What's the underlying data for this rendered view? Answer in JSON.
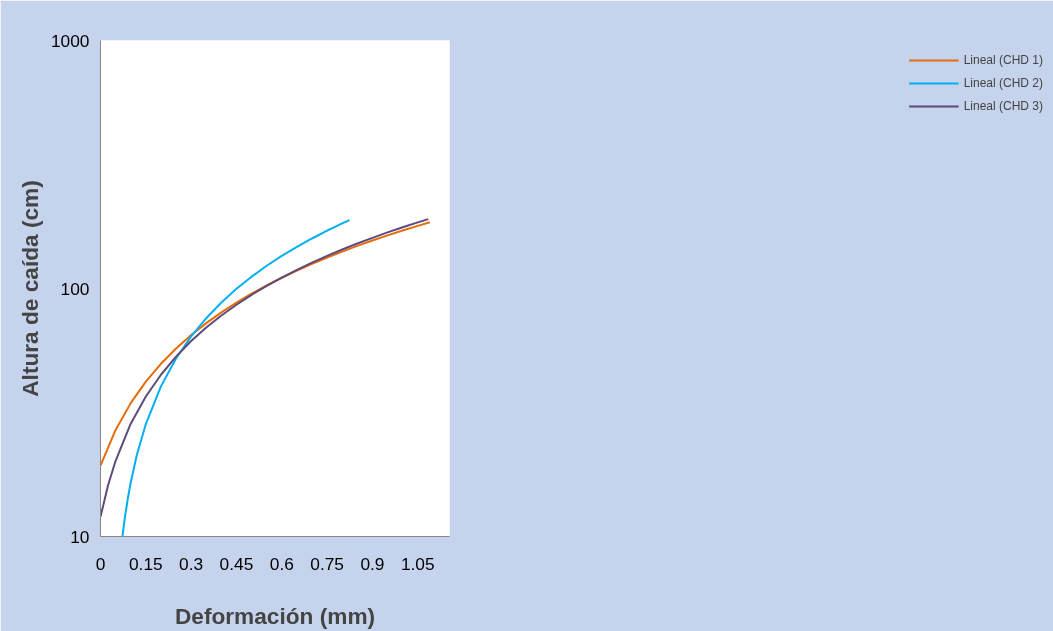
{
  "chart_data": {
    "type": "line",
    "xlabel": "Deformación (mm)",
    "ylabel": "Altura de caída (cm)",
    "log": "y",
    "xlim": [
      0,
      1.155
    ],
    "xticks": [
      0,
      0.15,
      0.3,
      0.45,
      0.6,
      0.75,
      0.9,
      1.05
    ],
    "ylim": [
      10,
      1000
    ],
    "yticks": [
      10,
      100,
      1000
    ],
    "grid": false,
    "legend": "right",
    "marker": "none",
    "line_style": "solid",
    "series": [
      {
        "name": "Lineal (CHD 1)",
        "color": "#e46c0a",
        "x": [
          0,
          0.05,
          0.1,
          0.15,
          0.2,
          0.25,
          0.3,
          0.35,
          0.4,
          0.45,
          0.5,
          0.55,
          0.6,
          0.65,
          0.7,
          0.75,
          0.8,
          0.85,
          0.9,
          0.95,
          1.0,
          1.05,
          1.09
        ],
        "values": [
          19.3,
          26.9,
          34.5,
          42.1,
          49.7,
          57.3,
          64.9,
          72.5,
          80.1,
          87.7,
          95.3,
          102.9,
          110.5,
          118.1,
          125.7,
          133.3,
          140.9,
          148.5,
          156.1,
          163.7,
          171.3,
          178.9,
          185.0
        ]
      },
      {
        "name": "Lineal (CHD 2)",
        "color": "#00b0f0",
        "x": [
          0.0726,
          0.08,
          0.09,
          0.1,
          0.12,
          0.15,
          0.2,
          0.25,
          0.3,
          0.35,
          0.4,
          0.45,
          0.5,
          0.55,
          0.6,
          0.65,
          0.7,
          0.75,
          0.8,
          0.824
        ],
        "values": [
          10.0,
          11.76,
          14.13,
          16.51,
          21.26,
          28.4,
          40.3,
          52.2,
          64.1,
          75.9,
          87.8,
          99.7,
          111.6,
          123.5,
          135.4,
          147.2,
          159.1,
          171.0,
          182.9,
          188.6
        ]
      },
      {
        "name": "Lineal (CHD 3)",
        "color": "#604a7b",
        "x": [
          0,
          0.025,
          0.05,
          0.1,
          0.15,
          0.2,
          0.25,
          0.3,
          0.35,
          0.4,
          0.45,
          0.5,
          0.55,
          0.6,
          0.65,
          0.7,
          0.75,
          0.8,
          0.85,
          0.9,
          0.95,
          1.0,
          1.05,
          1.085
        ],
        "values": [
          12.0,
          16.1,
          20.2,
          28.5,
          36.7,
          44.9,
          53.1,
          61.4,
          69.6,
          77.8,
          86.0,
          94.3,
          102.5,
          110.7,
          118.9,
          127.2,
          135.4,
          143.6,
          151.8,
          160.1,
          168.3,
          176.5,
          184.7,
          190.5
        ]
      }
    ]
  }
}
